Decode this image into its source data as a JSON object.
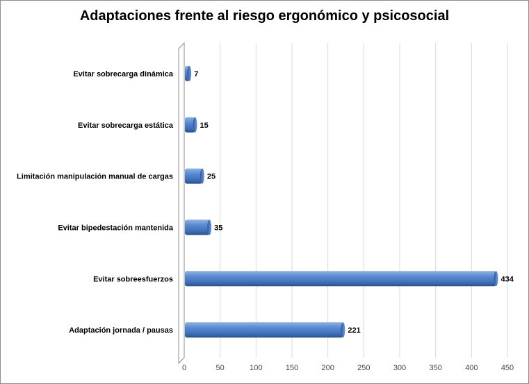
{
  "chart_data": {
    "type": "bar",
    "orientation": "horizontal",
    "title": "Adaptaciones frente al riesgo ergonómico y psicosocial",
    "categories": [
      "Evitar sobrecarga dinámica",
      "Evitar sobrecarga estática",
      "Limitación manipulación manual de cargas",
      "Evitar bipedestación mantenida",
      "Evitar sobreesfuerzos",
      "Adaptación jornada / pausas"
    ],
    "values": [
      7,
      15,
      25,
      35,
      434,
      221
    ],
    "xlim": [
      0,
      450
    ],
    "x_ticks": [
      "0",
      "50",
      "100",
      "150",
      "200",
      "250",
      "300",
      "350",
      "400",
      "450"
    ],
    "grid": "vertical",
    "legend": "none",
    "bar_color": "#4f81bd"
  }
}
